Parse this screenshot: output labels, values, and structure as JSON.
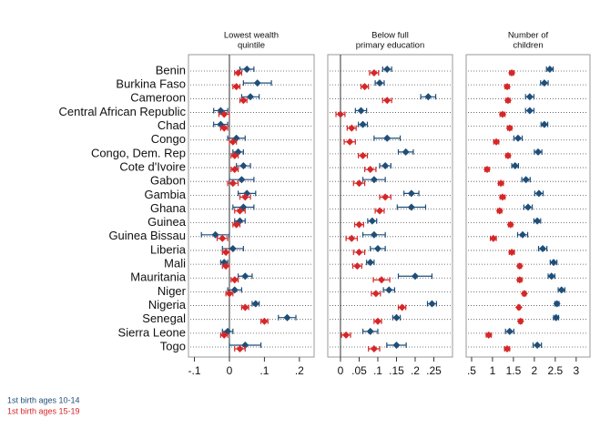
{
  "chart_data": {
    "type": "dot",
    "categories": [
      "Benin",
      "Burkina Faso",
      "Cameroon",
      "Central African Republic",
      "Chad",
      "Congo",
      "Congo, Dem. Rep",
      "Cote d'Ivoire",
      "Gabon",
      "Gambia",
      "Ghana",
      "Guinea",
      "Guinea Bissau",
      "Liberia",
      "Mali",
      "Mauritania",
      "Niger",
      "Nigeria",
      "Senegal",
      "Sierra Leone",
      "Togo"
    ],
    "series": [
      {
        "name": "1st birth ages 10-14",
        "color": "#1f4e79"
      },
      {
        "name": "1st birth ages 15-19",
        "color": "#d62728"
      }
    ],
    "panels": [
      {
        "title": [
          "Lowest wealth",
          "quintile"
        ],
        "xlim": [
          -0.117,
          0.242
        ],
        "refline": 0,
        "xticks": [
          {
            "value": -0.1,
            "label": "-.1"
          },
          0,
          {
            "value": 0.1,
            "label": ".1"
          },
          {
            "value": 0.2,
            "label": ".2"
          }
        ],
        "series": [
          {
            "values": [
              0.05,
              0.08,
              0.06,
              -0.025,
              -0.025,
              0.02,
              0.025,
              0.04,
              0.035,
              0.05,
              0.04,
              0.03,
              -0.04,
              0.01,
              -0.015,
              0.045,
              0.015,
              0.075,
              0.165,
              -0.005,
              0.045
            ],
            "errors": [
              0.02,
              0.04,
              0.025,
              0.02,
              0.02,
              0.025,
              0.015,
              0.02,
              0.035,
              0.025,
              0.03,
              0.015,
              0.04,
              0.03,
              0.01,
              0.02,
              0.02,
              0.01,
              0.025,
              0.015,
              0.045
            ]
          },
          {
            "values": [
              0.025,
              0.02,
              0.04,
              -0.015,
              -0.015,
              0.01,
              0.015,
              0.015,
              0.01,
              0.045,
              0.03,
              0.02,
              -0.02,
              -0.01,
              -0.01,
              0.015,
              0,
              0.045,
              0.1,
              -0.015,
              0.03
            ],
            "errors": [
              0.01,
              0.01,
              0.01,
              0.015,
              0.01,
              0.01,
              0.01,
              0.01,
              0.015,
              0.015,
              0.015,
              0.01,
              0.015,
              0.01,
              0.01,
              0.01,
              0.01,
              0.01,
              0.01,
              0.01,
              0.015
            ]
          }
        ]
      },
      {
        "title": [
          "Below full",
          "primary education"
        ],
        "xlim": [
          -0.034,
          0.3
        ],
        "refline": 0,
        "xticks": [
          0,
          {
            "value": 0.05,
            "label": ".05"
          },
          {
            "value": 0.1,
            "label": ".1"
          },
          {
            "value": 0.15,
            "label": ".15"
          },
          {
            "value": 0.2,
            "label": ".2"
          },
          {
            "value": 0.25,
            "label": ".25"
          }
        ],
        "series": [
          {
            "values": [
              0.125,
              0.105,
              0.235,
              0.055,
              0.06,
              0.125,
              0.175,
              0.12,
              0.09,
              0.19,
              0.19,
              0.085,
              0.09,
              0.1,
              0.08,
              0.2,
              0.13,
              0.245,
              0.15,
              0.08,
              0.15
            ],
            "errors": [
              0.012,
              0.012,
              0.02,
              0.015,
              0.012,
              0.035,
              0.02,
              0.015,
              0.03,
              0.02,
              0.038,
              0.012,
              0.03,
              0.02,
              0.01,
              0.045,
              0.015,
              0.012,
              0.01,
              0.02,
              0.026
            ]
          },
          {
            "values": [
              0.09,
              0.065,
              0.125,
              0,
              0.03,
              0.025,
              0.06,
              0.08,
              0.05,
              0.12,
              0.105,
              0.05,
              0.03,
              0.05,
              0.045,
              0.11,
              0.095,
              0.165,
              0.1,
              0.015,
              0.09
            ],
            "errors": [
              0.012,
              0.01,
              0.012,
              0.012,
              0.012,
              0.015,
              0.012,
              0.015,
              0.015,
              0.015,
              0.012,
              0.012,
              0.015,
              0.015,
              0.012,
              0.022,
              0.012,
              0.01,
              0.01,
              0.012,
              0.015
            ]
          }
        ]
      },
      {
        "title": [
          "Number of",
          "children"
        ],
        "xlim": [
          0.37,
          3.33
        ],
        "xticks": [
          {
            "value": 0.5,
            "label": ".5"
          },
          1,
          1.5,
          2,
          2.5,
          3
        ],
        "series": [
          {
            "values": [
              2.37,
              2.24,
              1.89,
              1.89,
              2.24,
              1.61,
              2.09,
              1.54,
              1.8,
              2.11,
              1.85,
              2.07,
              1.72,
              2.2,
              2.46,
              2.41,
              2.65,
              2.54,
              2.52,
              1.41,
              2.07
            ],
            "errors": [
              0.08,
              0.09,
              0.1,
              0.1,
              0.08,
              0.1,
              0.09,
              0.08,
              0.1,
              0.1,
              0.1,
              0.08,
              0.12,
              0.1,
              0.08,
              0.08,
              0.08,
              0.05,
              0.06,
              0.1,
              0.1
            ]
          },
          {
            "values": [
              1.46,
              1.35,
              1.37,
              1.24,
              1.41,
              1.09,
              1.37,
              0.87,
              1.2,
              1.24,
              1.17,
              1.43,
              1.02,
              1.46,
              1.65,
              1.65,
              1.76,
              1.63,
              1.67,
              0.91,
              1.35
            ],
            "errors": [
              0.05,
              0.05,
              0.05,
              0.06,
              0.05,
              0.06,
              0.05,
              0.05,
              0.06,
              0.06,
              0.05,
              0.05,
              0.07,
              0.06,
              0.04,
              0.05,
              0.04,
              0.03,
              0.04,
              0.06,
              0.06
            ]
          }
        ]
      }
    ]
  }
}
